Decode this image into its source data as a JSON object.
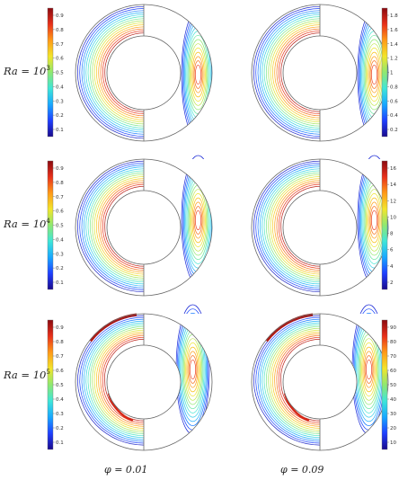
{
  "figure": {
    "rows": [
      {
        "ra_label": "Ra = 10",
        "ra_exp": "3"
      },
      {
        "ra_label": "Ra = 10",
        "ra_exp": "4"
      },
      {
        "ra_label": "Ra = 10",
        "ra_exp": "5"
      }
    ],
    "columns": [
      {
        "phi_label": "φ = 0.01"
      },
      {
        "phi_label": "φ = 0.09"
      }
    ],
    "colorbars": [
      {
        "ticks": [
          "0.9",
          "0.8",
          "0.7",
          "0.6",
          "0.5",
          "0.4",
          "0.3",
          "0.2",
          "0.1"
        ]
      },
      {
        "ticks": [
          "1.8",
          "1.6",
          "1.4",
          "1.2",
          "1",
          "0.8",
          "0.6",
          "0.4",
          "0.2"
        ]
      },
      {
        "ticks": [
          "0.9",
          "0.8",
          "0.7",
          "0.6",
          "0.5",
          "0.4",
          "0.3",
          "0.2",
          "0.1"
        ]
      },
      {
        "ticks": [
          "16",
          "14",
          "12",
          "10",
          "8",
          "6",
          "4",
          "2"
        ]
      },
      {
        "ticks": [
          "0.9",
          "0.8",
          "0.7",
          "0.6",
          "0.5",
          "0.4",
          "0.3",
          "0.2",
          "0.1"
        ]
      },
      {
        "ticks": [
          "90",
          "80",
          "70",
          "60",
          "50",
          "40",
          "30",
          "20",
          "10"
        ]
      }
    ],
    "colors": {
      "colormap": [
        "#1a0a8c",
        "#1f3fff",
        "#18a8ff",
        "#3fe6d8",
        "#8fe870",
        "#f2e52a",
        "#ff9a18",
        "#e8301a",
        "#8a0a10"
      ],
      "annulus_outline": "#666666"
    }
  }
}
